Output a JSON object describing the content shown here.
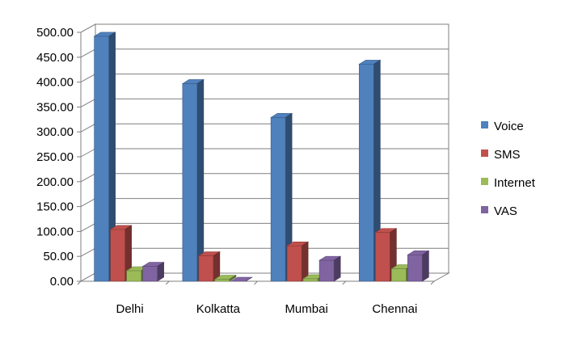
{
  "chart_data": {
    "type": "bar",
    "title": "",
    "xlabel": "",
    "ylabel": "",
    "categories": [
      "Delhi",
      "Kolkatta",
      "Mumbai",
      "Chennai"
    ],
    "series": [
      {
        "name": "Voice",
        "values": [
          492,
          397,
          329,
          436
        ],
        "color": "#4f81bd"
      },
      {
        "name": "SMS",
        "values": [
          104,
          51,
          71,
          98
        ],
        "color": "#c0504d"
      },
      {
        "name": "Internet",
        "values": [
          21,
          4,
          5,
          25
        ],
        "color": "#9bbb59"
      },
      {
        "name": "VAS",
        "values": [
          30,
          0,
          42,
          53
        ],
        "color": "#8064a2"
      }
    ],
    "ylim": [
      0,
      500
    ],
    "yticks": [
      "0.00",
      "50.00",
      "100.00",
      "150.00",
      "200.00",
      "250.00",
      "300.00",
      "350.00",
      "400.00",
      "450.00",
      "500.00"
    ],
    "grid": true,
    "legend_position": "right"
  }
}
